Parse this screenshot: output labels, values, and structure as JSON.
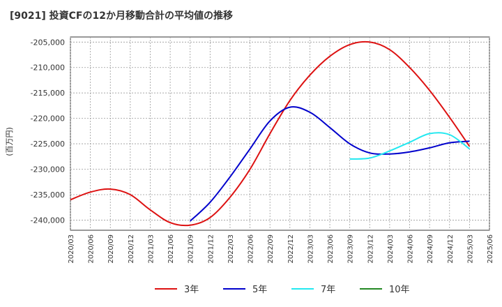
{
  "chart_data": {
    "type": "line",
    "title": "[9021]  投資CFの12か月移動合計の平均値の推移",
    "ylabel": "(百万円)",
    "xlabel": "",
    "ylim": [
      -242000,
      -204000
    ],
    "xlim": [
      "2020/03",
      "2025/06"
    ],
    "grid": true,
    "legend_position": "bottom",
    "y_ticks": [
      "-205,000",
      "-210,000",
      "-215,000",
      "-220,000",
      "-225,000",
      "-230,000",
      "-235,000",
      "-240,000"
    ],
    "y_tick_values": [
      -205000,
      -210000,
      -215000,
      -220000,
      -225000,
      -230000,
      -235000,
      -240000
    ],
    "x_ticks": [
      "2020/03",
      "2020/06",
      "2020/09",
      "2020/12",
      "2021/03",
      "2021/06",
      "2021/09",
      "2021/12",
      "2022/03",
      "2022/06",
      "2022/09",
      "2022/12",
      "2023/03",
      "2023/06",
      "2023/09",
      "2023/12",
      "2024/03",
      "2024/06",
      "2024/09",
      "2024/12",
      "2025/03",
      "2025/06"
    ],
    "series": [
      {
        "name": "3年",
        "color": "#dd1111",
        "points": [
          [
            "2020/03",
            -236000
          ],
          [
            "2020/06",
            -234500
          ],
          [
            "2020/09",
            -233900
          ],
          [
            "2020/12",
            -235000
          ],
          [
            "2021/03",
            -238000
          ],
          [
            "2021/06",
            -240500
          ],
          [
            "2021/09",
            -241000
          ],
          [
            "2021/12",
            -239500
          ],
          [
            "2022/03",
            -235500
          ],
          [
            "2022/06",
            -230000
          ],
          [
            "2022/09",
            -223000
          ],
          [
            "2022/12",
            -216500
          ],
          [
            "2023/03",
            -211500
          ],
          [
            "2023/06",
            -207800
          ],
          [
            "2023/09",
            -205500
          ],
          [
            "2023/12",
            -205000
          ],
          [
            "2024/03",
            -206500
          ],
          [
            "2024/06",
            -210000
          ],
          [
            "2024/09",
            -214500
          ],
          [
            "2024/12",
            -219800
          ],
          [
            "2025/03",
            -225500
          ]
        ]
      },
      {
        "name": "5年",
        "color": "#0000cc",
        "points": [
          [
            "2021/09",
            -240200
          ],
          [
            "2021/12",
            -236500
          ],
          [
            "2022/03",
            -231500
          ],
          [
            "2022/06",
            -226000
          ],
          [
            "2022/09",
            -220500
          ],
          [
            "2022/12",
            -217800
          ],
          [
            "2023/03",
            -218800
          ],
          [
            "2023/06",
            -221800
          ],
          [
            "2023/09",
            -225000
          ],
          [
            "2023/12",
            -226800
          ],
          [
            "2024/03",
            -227000
          ],
          [
            "2024/06",
            -226600
          ],
          [
            "2024/09",
            -225800
          ],
          [
            "2024/12",
            -224800
          ],
          [
            "2025/03",
            -224500
          ]
        ]
      },
      {
        "name": "7年",
        "color": "#22e8f0",
        "points": [
          [
            "2023/09",
            -228000
          ],
          [
            "2023/12",
            -227800
          ],
          [
            "2024/03",
            -226400
          ],
          [
            "2024/06",
            -224700
          ],
          [
            "2024/09",
            -223000
          ],
          [
            "2024/12",
            -223200
          ],
          [
            "2025/03",
            -226000
          ]
        ]
      },
      {
        "name": "10年",
        "color": "#228822",
        "points": []
      }
    ]
  }
}
